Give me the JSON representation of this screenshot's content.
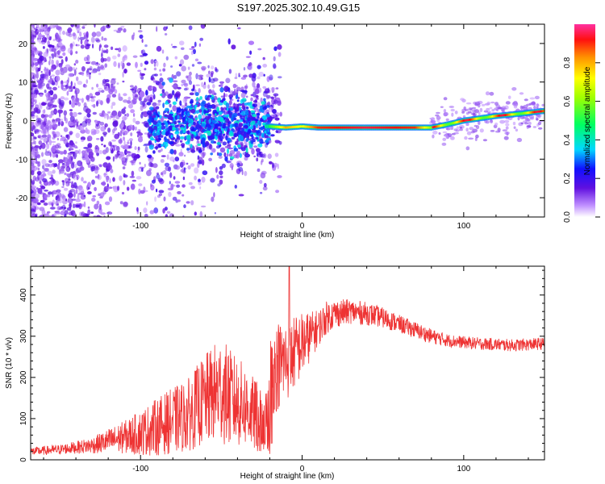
{
  "title": "S197.2025.302.10.49.G15",
  "colors": {
    "signal": "#ee3333",
    "frame": "#000000",
    "background": "#ffffff"
  },
  "chart_data": [
    {
      "type": "heatmap",
      "name": "spectrogram",
      "xlabel": "Height of straight line (km)",
      "ylabel": "Frequency (Hz)",
      "xlim": [
        -168,
        150
      ],
      "ylim": [
        -25,
        25
      ],
      "xticks": [
        -100,
        0,
        100
      ],
      "xtick_labels": [
        "-100",
        "0",
        "100"
      ],
      "yticks": [
        -20,
        -10,
        0,
        10,
        20
      ],
      "ytick_labels": [
        "-20",
        "-10",
        "0",
        "10",
        "20"
      ],
      "colorbar": {
        "label": "Normalized spectral amplitude",
        "range": [
          0,
          1
        ],
        "ticks": [
          0.0,
          0.2,
          0.4,
          0.6,
          0.8
        ],
        "tick_labels": [
          "0.0",
          "0.2",
          "0.4",
          "0.6",
          "0.8"
        ]
      },
      "ridge": {
        "description_points_x_km": [
          -20,
          -10,
          0,
          10,
          40,
          70,
          80,
          90,
          100,
          110,
          120,
          135,
          150
        ],
        "frequency_hz": [
          -1.5,
          -1.8,
          -1.5,
          -1.8,
          -1.8,
          -1.8,
          -1.8,
          -1.0,
          0.0,
          0.6,
          1.2,
          1.8,
          2.5
        ],
        "amplitude": [
          0.5,
          0.8,
          0.7,
          0.9,
          0.95,
          0.9,
          0.6,
          0.9,
          0.85,
          0.85,
          0.85,
          0.85,
          0.7
        ]
      }
    },
    {
      "type": "line",
      "name": "snr",
      "xlabel": "Height of straight line (km)",
      "ylabel": "SNR (10 * v/v)",
      "xlim": [
        -168,
        150
      ],
      "ylim": [
        0,
        470
      ],
      "xticks": [
        -100,
        0,
        100
      ],
      "xtick_labels": [
        "-100",
        "0",
        "100"
      ],
      "yticks": [
        0,
        100,
        200,
        300,
        400
      ],
      "ytick_labels": [
        "0",
        "100",
        "200",
        "300",
        "400"
      ],
      "envelope_x_km": [
        -168,
        -150,
        -140,
        -130,
        -120,
        -110,
        -100,
        -90,
        -80,
        -70,
        -65,
        -60,
        -55,
        -50,
        -45,
        -40,
        -35,
        -30,
        -25,
        -22,
        -20,
        -15,
        -10,
        -7,
        -5,
        0,
        5,
        10,
        15,
        20,
        30,
        40,
        50,
        60,
        70,
        80,
        90,
        100,
        110,
        120,
        130,
        140,
        150
      ],
      "envelope_mid": [
        20,
        25,
        30,
        35,
        45,
        55,
        65,
        80,
        95,
        110,
        130,
        145,
        160,
        170,
        150,
        140,
        130,
        110,
        100,
        95,
        200,
        230,
        240,
        250,
        260,
        280,
        300,
        320,
        345,
        355,
        360,
        355,
        345,
        330,
        315,
        300,
        290,
        285,
        282,
        280,
        278,
        280,
        282
      ],
      "envelope_amp": [
        10,
        12,
        15,
        20,
        30,
        40,
        55,
        70,
        80,
        90,
        100,
        110,
        120,
        130,
        120,
        110,
        100,
        90,
        80,
        80,
        100,
        110,
        100,
        95,
        90,
        80,
        60,
        45,
        40,
        35,
        30,
        28,
        25,
        22,
        20,
        18,
        16,
        15,
        15,
        15,
        15,
        15,
        15
      ],
      "peak_annotation_max": 470
    }
  ]
}
